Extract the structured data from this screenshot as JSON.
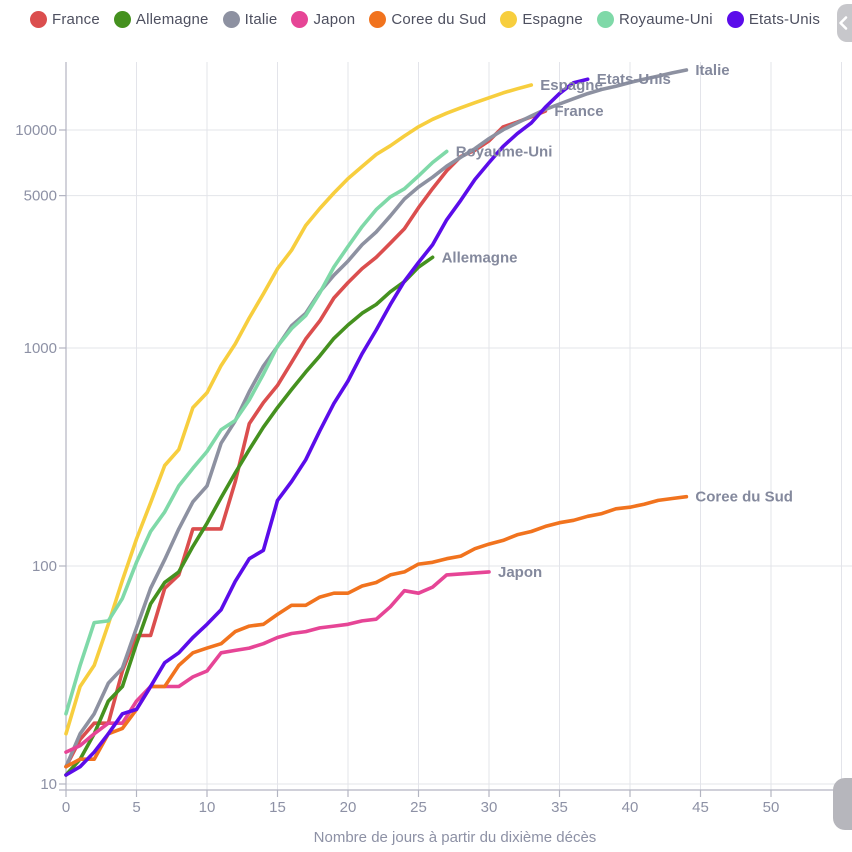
{
  "legend": {
    "items": [
      {
        "label": "France",
        "color": "#db4e4e"
      },
      {
        "label": "Allemagne",
        "color": "#45911f"
      },
      {
        "label": "Italie",
        "color": "#8d91a1"
      },
      {
        "label": "Japon",
        "color": "#e64596"
      },
      {
        "label": "Coree du Sud",
        "color": "#f1731e"
      },
      {
        "label": "Espagne",
        "color": "#f7ce3e"
      },
      {
        "label": "Royaume-Uni",
        "color": "#7fd9a8"
      },
      {
        "label": "Etats-Unis",
        "color": "#5b0cea"
      }
    ]
  },
  "controls": {
    "legend_scroll_icon": "chevron-left",
    "corner_button_icon": "chevron-right"
  },
  "colors": {
    "gridline": "#e3e4ea",
    "axis": "#b3b5c2",
    "tick_label": "#8d91a5",
    "series_label": "#84899d",
    "axis_title": "#8d91a5"
  },
  "chart_data": {
    "type": "line",
    "title": "",
    "xlabel": "Nombre de jours à partir du dixième décès",
    "ylabel": "",
    "y_scale": "log",
    "grid": true,
    "legend_position": "top",
    "x_ticks": [
      0,
      5,
      10,
      15,
      20,
      25,
      30,
      35,
      40,
      45,
      50,
      55
    ],
    "y_ticks": [
      10,
      100,
      1000,
      5000,
      10000
    ],
    "y_tick_labels": [
      "10",
      "100",
      "1000",
      "5000",
      "10000"
    ],
    "xlim": [
      0,
      55.7
    ],
    "ylim": [
      10,
      21000
    ],
    "x_unit": "jours depuis le 10e décès",
    "series": [
      {
        "name": "France",
        "color": "#db4e4e",
        "values": [
          12,
          16,
          19,
          19,
          33,
          48,
          48,
          79,
          91,
          148,
          148,
          148,
          243,
          450,
          562,
          674,
          860,
          1100,
          1331,
          1696,
          1995,
          2314,
          2606,
          3024,
          3523,
          4403,
          5387,
          6507,
          7560,
          8078,
          8911,
          10328,
          10869,
          11500,
          12210
        ]
      },
      {
        "name": "Allemagne",
        "color": "#45911f",
        "values": [
          11,
          13,
          17,
          24,
          28,
          44,
          67,
          84,
          94,
          123,
          157,
          206,
          267,
          342,
          433,
          533,
          645,
          775,
          920,
          1107,
          1275,
          1444,
          1584,
          1810,
          2016,
          2349,
          2607
        ]
      },
      {
        "name": "Italie",
        "color": "#8d91a1",
        "values": [
          12,
          17,
          21,
          29,
          34,
          52,
          79,
          107,
          148,
          197,
          233,
          366,
          463,
          631,
          827,
          1016,
          1266,
          1441,
          1809,
          2158,
          2503,
          2978,
          3405,
          4032,
          4825,
          5476,
          6077,
          6820,
          7503,
          8215,
          9134,
          10023,
          10779,
          11591,
          12428,
          13155,
          13915,
          14681,
          15362,
          15887,
          16523,
          17127,
          17669,
          18279,
          18849
        ]
      },
      {
        "name": "Japon",
        "color": "#e64596",
        "values": [
          14,
          15,
          17,
          19,
          19,
          24,
          28,
          28,
          28,
          31,
          33,
          40,
          41,
          42,
          44,
          47,
          49,
          50,
          52,
          53,
          54,
          56,
          57,
          65,
          77,
          75,
          80,
          91,
          92,
          93,
          94
        ]
      },
      {
        "name": "Coree du Sud",
        "color": "#f1731e",
        "values": [
          12,
          13,
          13,
          17,
          18,
          22,
          28,
          28,
          35,
          40,
          42,
          44,
          50,
          53,
          54,
          60,
          66,
          66,
          72,
          75,
          75,
          81,
          84,
          91,
          94,
          102,
          104,
          108,
          111,
          120,
          126,
          131,
          139,
          144,
          152,
          158,
          162,
          169,
          174,
          183,
          186,
          192,
          200,
          204,
          208
        ]
      },
      {
        "name": "Espagne",
        "color": "#f7ce3e",
        "values": [
          17,
          28,
          35,
          54,
          86,
          133,
          195,
          289,
          342,
          533,
          623,
          830,
          1043,
          1375,
          1772,
          2311,
          2808,
          3647,
          4365,
          5138,
          5982,
          6803,
          7716,
          8464,
          9387,
          10348,
          11198,
          11947,
          12641,
          13341,
          14045,
          14792,
          15447,
          16081
        ]
      },
      {
        "name": "Royaume-Uni",
        "color": "#7fd9a8",
        "values": [
          21,
          35,
          55,
          56,
          71,
          104,
          144,
          177,
          233,
          281,
          335,
          422,
          465,
          578,
          759,
          1019,
          1228,
          1408,
          1789,
          2352,
          2921,
          3605,
          4313,
          4934,
          5373,
          6159,
          7097,
          7978
        ]
      },
      {
        "name": "Etats-Unis",
        "color": "#5b0cea",
        "values": [
          11,
          12,
          14,
          17,
          21,
          22,
          28,
          36,
          40,
          47,
          54,
          63,
          85,
          108,
          118,
          200,
          244,
          307,
          417,
          557,
          706,
          942,
          1209,
          1581,
          2026,
          2467,
          2978,
          3873,
          4757,
          5926,
          7087,
          8407,
          9619,
          10783,
          12722,
          14695,
          16478,
          17100
        ]
      }
    ]
  }
}
